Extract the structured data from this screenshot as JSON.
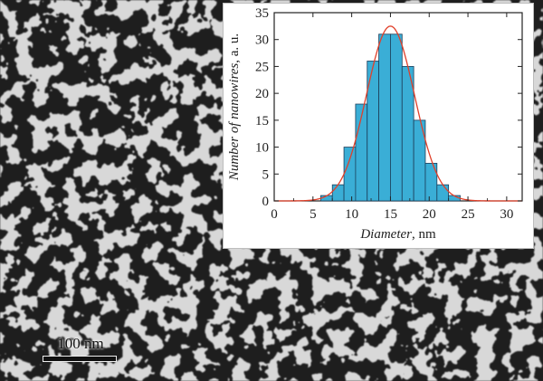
{
  "image": {
    "description_icon": "sem-nanowire-network",
    "scale_bar_label": "100 nm"
  },
  "chart_data": {
    "type": "bar",
    "xlabel_italic": "Diameter",
    "xlabel_unit": ", nm",
    "ylabel_italic": "Number of nanowires",
    "ylabel_unit": ", a. u.",
    "xlim": [
      0,
      32
    ],
    "ylim": [
      0,
      35
    ],
    "xticks": [
      0,
      5,
      10,
      15,
      20,
      25,
      30
    ],
    "yticks": [
      0,
      5,
      10,
      15,
      20,
      25,
      30,
      35
    ],
    "bin_width": 1.5,
    "bins_start": [
      6,
      7.5,
      9,
      10.5,
      12,
      13.5,
      15,
      16.5,
      18,
      19.5,
      21,
      22.5
    ],
    "values": [
      1,
      3,
      10,
      18,
      26,
      31,
      31,
      25,
      15,
      7,
      3,
      1
    ],
    "fit": {
      "type": "gaussian",
      "center": 15,
      "sigma": 3.1,
      "amplitude": 32.5
    },
    "bar_color": "#3aaed6",
    "bar_edge_color": "#1c3e5a",
    "fit_color": "#e0402a"
  }
}
